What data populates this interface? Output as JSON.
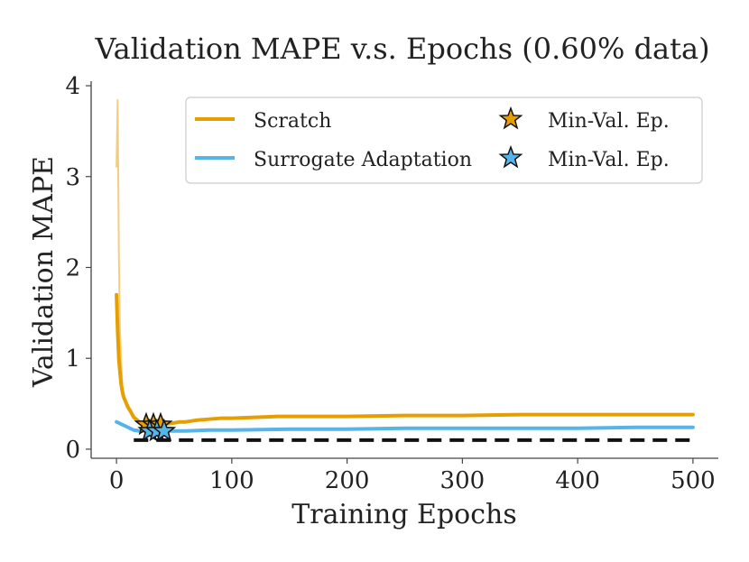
{
  "chart_data": {
    "type": "line",
    "title": "Validation MAPE v.s. Epochs (0.60% data)",
    "xlabel": "Training Epochs",
    "ylabel": "Validation MAPE",
    "xlim": [
      -22,
      522
    ],
    "ylim": [
      -0.1,
      4.05
    ],
    "xticks": [
      0,
      100,
      200,
      300,
      400,
      500
    ],
    "yticks": [
      0,
      1,
      2,
      3,
      4
    ],
    "grid": false,
    "legend_position": "top-right",
    "reference_line": {
      "y": 0.1,
      "style": "dashed",
      "color": "#111111",
      "x_range": [
        15,
        500
      ]
    },
    "series": [
      {
        "name": "Scratch",
        "color": "#E69F00",
        "x": [
          0,
          1,
          2,
          3,
          4,
          5,
          6,
          8,
          10,
          12,
          15,
          18,
          20,
          22,
          25,
          28,
          30,
          35,
          40,
          45,
          50,
          55,
          60,
          70,
          80,
          90,
          100,
          120,
          140,
          160,
          180,
          200,
          250,
          300,
          350,
          400,
          450,
          500
        ],
        "y": [
          1.7,
          1.3,
          1.0,
          0.85,
          0.72,
          0.64,
          0.58,
          0.52,
          0.46,
          0.42,
          0.35,
          0.32,
          0.3,
          0.29,
          0.28,
          0.27,
          0.27,
          0.27,
          0.27,
          0.28,
          0.29,
          0.3,
          0.3,
          0.32,
          0.33,
          0.34,
          0.34,
          0.35,
          0.36,
          0.36,
          0.36,
          0.36,
          0.37,
          0.37,
          0.38,
          0.38,
          0.38,
          0.38
        ],
        "raw_y_peak": 3.85,
        "min_val_epoch": 32,
        "min_val_mape": 0.27
      },
      {
        "name": "Surrogate Adaptation",
        "color": "#56B4E9",
        "x": [
          0,
          5,
          10,
          15,
          20,
          25,
          30,
          35,
          40,
          50,
          60,
          80,
          100,
          150,
          200,
          250,
          300,
          350,
          400,
          450,
          500
        ],
        "y": [
          0.3,
          0.27,
          0.24,
          0.21,
          0.2,
          0.2,
          0.2,
          0.2,
          0.2,
          0.2,
          0.2,
          0.21,
          0.21,
          0.22,
          0.22,
          0.23,
          0.23,
          0.23,
          0.23,
          0.24,
          0.24
        ],
        "min_val_epoch": 35,
        "min_val_mape": 0.2
      }
    ],
    "legend": {
      "entries": [
        "Scratch",
        "Surrogate Adaptation"
      ],
      "marker_label": "Min-Val. Ep."
    }
  }
}
